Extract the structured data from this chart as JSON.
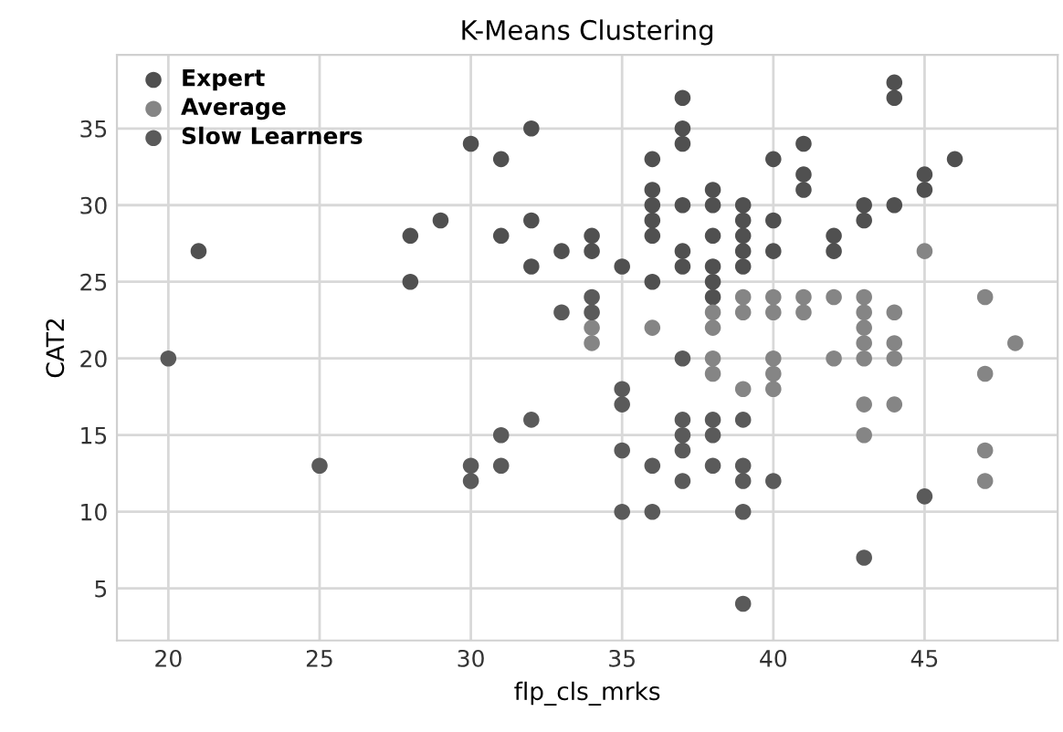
{
  "chart_data": {
    "type": "scatter",
    "title": "K-Means Clustering",
    "xlabel": "flp_cls_mrks",
    "ylabel": "CAT2",
    "xlim": [
      18.3,
      49.4
    ],
    "ylim": [
      1.6,
      39.8
    ],
    "xticks": [
      20,
      25,
      30,
      35,
      40,
      45
    ],
    "yticks": [
      5,
      10,
      15,
      20,
      25,
      30,
      35
    ],
    "grid": true,
    "legend": "top left",
    "marker": "circle",
    "series": [
      {
        "name": "Expert",
        "color": "#505050",
        "x": [
          21,
          28,
          28,
          29,
          30,
          31,
          31,
          32,
          32,
          32,
          33,
          34,
          34,
          35,
          36,
          36,
          36,
          36,
          36,
          36,
          37,
          37,
          37,
          37,
          37,
          37,
          38,
          38,
          38,
          38,
          38,
          38,
          39,
          39,
          39,
          39,
          39,
          40,
          40,
          40,
          41,
          41,
          41,
          42,
          42,
          43,
          43,
          44,
          44,
          44,
          45,
          45,
          46
        ],
        "values": [
          27,
          28,
          25,
          29,
          34,
          33,
          28,
          35,
          29,
          26,
          27,
          28,
          27,
          26,
          33,
          31,
          30,
          29,
          28,
          25,
          37,
          35,
          34,
          30,
          27,
          26,
          31,
          30,
          28,
          26,
          25,
          24,
          30,
          29,
          28,
          27,
          26,
          33,
          29,
          27,
          34,
          32,
          31,
          28,
          27,
          30,
          29,
          38,
          37,
          30,
          32,
          31,
          33
        ]
      },
      {
        "name": "Average",
        "color": "#858585",
        "x": [
          34,
          34,
          36,
          38,
          38,
          38,
          38,
          39,
          39,
          39,
          40,
          40,
          40,
          40,
          40,
          41,
          41,
          42,
          42,
          43,
          43,
          43,
          43,
          43,
          43,
          43,
          44,
          44,
          44,
          44,
          45,
          47,
          47,
          47,
          47,
          48
        ],
        "values": [
          22,
          21,
          22,
          23,
          22,
          20,
          19,
          24,
          23,
          18,
          24,
          23,
          20,
          19,
          18,
          24,
          23,
          24,
          20,
          24,
          23,
          22,
          21,
          20,
          17,
          15,
          23,
          21,
          20,
          17,
          27,
          24,
          19,
          14,
          12,
          21
        ]
      },
      {
        "name": "Slow Learners",
        "color": "#5a5a5a",
        "x": [
          20,
          25,
          30,
          30,
          31,
          31,
          32,
          33,
          34,
          34,
          35,
          35,
          35,
          35,
          36,
          36,
          37,
          37,
          37,
          37,
          37,
          38,
          38,
          38,
          39,
          39,
          39,
          39,
          39,
          40,
          43,
          45
        ],
        "values": [
          20,
          13,
          13,
          12,
          15,
          13,
          16,
          23,
          24,
          23,
          18,
          17,
          14,
          10,
          13,
          10,
          20,
          16,
          15,
          14,
          12,
          16,
          15,
          13,
          16,
          13,
          12,
          10,
          4,
          12,
          7,
          11
        ]
      }
    ]
  }
}
